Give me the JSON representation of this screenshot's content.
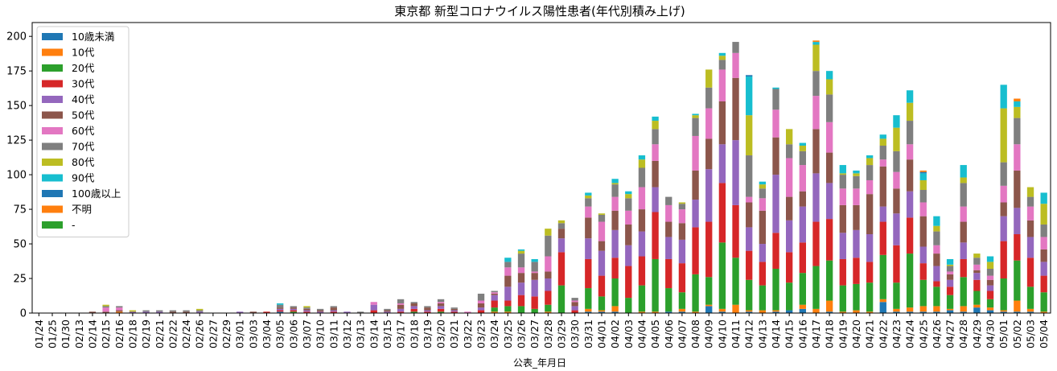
{
  "chart_data": {
    "type": "bar",
    "stacked": true,
    "title": "東京都 新型コロナウイルス陽性患者(年代別積み上げ)",
    "xlabel": "公表_年月日",
    "ylabel": "",
    "ylim": [
      0,
      210
    ],
    "yticks": [
      0,
      25,
      50,
      75,
      100,
      125,
      150,
      175,
      200
    ],
    "grid": false,
    "legend_position": "top-left",
    "categories": [
      "01/24",
      "01/25",
      "01/30",
      "02/13",
      "02/14",
      "02/15",
      "02/16",
      "02/18",
      "02/19",
      "02/21",
      "02/22",
      "02/24",
      "02/26",
      "02/27",
      "02/29",
      "03/01",
      "03/03",
      "03/04",
      "03/05",
      "03/06",
      "03/07",
      "03/10",
      "03/11",
      "03/12",
      "03/13",
      "03/14",
      "03/15",
      "03/17",
      "03/18",
      "03/19",
      "03/20",
      "03/21",
      "03/22",
      "03/23",
      "03/24",
      "03/25",
      "03/26",
      "03/27",
      "03/28",
      "03/29",
      "03/30",
      "03/31",
      "04/01",
      "04/02",
      "04/03",
      "04/04",
      "04/05",
      "04/06",
      "04/07",
      "04/08",
      "04/09",
      "04/10",
      "04/11",
      "04/12",
      "04/13",
      "04/14",
      "04/15",
      "04/16",
      "04/17",
      "04/18",
      "04/19",
      "04/20",
      "04/21",
      "04/22",
      "04/23",
      "04/24",
      "04/25",
      "04/26",
      "04/27",
      "04/28",
      "04/29",
      "04/30",
      "05/01",
      "05/02",
      "05/03",
      "05/04"
    ],
    "series": [
      {
        "name": "10歳未満",
        "color": "#1f77b4",
        "values": [
          0,
          0,
          0,
          0,
          0,
          0,
          0,
          0,
          0,
          0,
          0,
          0,
          0,
          0,
          0,
          0,
          0,
          0,
          1,
          0,
          0,
          0,
          0,
          0,
          0,
          0,
          0,
          0,
          0,
          0,
          0,
          0,
          0,
          0,
          0,
          0,
          0,
          0,
          0,
          0,
          0,
          1,
          1,
          1,
          0,
          0,
          0,
          1,
          1,
          0,
          5,
          1,
          0,
          1,
          0,
          1,
          2,
          3,
          0,
          1,
          0,
          0,
          0,
          8,
          1,
          1,
          1,
          1,
          2,
          1,
          4,
          2,
          1,
          1,
          1,
          0
        ]
      },
      {
        "name": "10代",
        "color": "#ff7f0e",
        "values": [
          0,
          0,
          0,
          0,
          0,
          0,
          1,
          0,
          0,
          0,
          0,
          0,
          0,
          0,
          0,
          0,
          0,
          0,
          0,
          0,
          0,
          0,
          0,
          0,
          0,
          0,
          0,
          0,
          0,
          0,
          0,
          0,
          0,
          0,
          1,
          1,
          0,
          0,
          1,
          0,
          0,
          2,
          1,
          4,
          0,
          1,
          1,
          0,
          2,
          1,
          1,
          2,
          6,
          1,
          2,
          1,
          0,
          3,
          3,
          8,
          1,
          2,
          1,
          2,
          2,
          3,
          4,
          4,
          1,
          4,
          2,
          2,
          1,
          8,
          2,
          1
        ]
      },
      {
        "name": "20代",
        "color": "#2ca02c",
        "values": [
          0,
          0,
          0,
          0,
          0,
          0,
          0,
          0,
          0,
          0,
          0,
          0,
          0,
          0,
          0,
          0,
          0,
          0,
          0,
          1,
          0,
          0,
          0,
          0,
          0,
          0,
          0,
          0,
          1,
          0,
          1,
          0,
          0,
          0,
          3,
          4,
          5,
          3,
          5,
          20,
          0,
          15,
          10,
          20,
          11,
          19,
          38,
          17,
          12,
          27,
          20,
          48,
          34,
          22,
          18,
          30,
          20,
          23,
          31,
          29,
          19,
          19,
          21,
          32,
          19,
          39,
          19,
          14,
          10,
          21,
          10,
          6,
          23,
          29,
          16,
          14
        ]
      },
      {
        "name": "30代",
        "color": "#d62728",
        "values": [
          0,
          0,
          0,
          0,
          0,
          0,
          0,
          0,
          0,
          0,
          0,
          0,
          0,
          0,
          0,
          0,
          0,
          1,
          1,
          1,
          1,
          0,
          1,
          0,
          0,
          2,
          0,
          1,
          2,
          1,
          2,
          1,
          0,
          2,
          5,
          4,
          8,
          9,
          10,
          24,
          2,
          21,
          15,
          15,
          23,
          21,
          34,
          21,
          21,
          34,
          40,
          43,
          38,
          21,
          17,
          26,
          22,
          22,
          32,
          30,
          19,
          19,
          15,
          24,
          27,
          26,
          12,
          4,
          6,
          13,
          8,
          6,
          27,
          19,
          21,
          12
        ]
      },
      {
        "name": "40代",
        "color": "#9467bd",
        "values": [
          0,
          0,
          0,
          0,
          0,
          0,
          0,
          1,
          1,
          1,
          0,
          0,
          1,
          0,
          0,
          1,
          0,
          0,
          1,
          1,
          1,
          1,
          1,
          1,
          0,
          4,
          1,
          2,
          2,
          1,
          2,
          1,
          0,
          2,
          4,
          10,
          9,
          12,
          9,
          10,
          3,
          15,
          18,
          20,
          15,
          18,
          18,
          16,
          17,
          20,
          38,
          28,
          47,
          17,
          13,
          42,
          23,
          26,
          35,
          26,
          19,
          20,
          20,
          11,
          23,
          19,
          12,
          11,
          5,
          12,
          5,
          4,
          18,
          19,
          15,
          10
        ]
      },
      {
        "name": "50代",
        "color": "#8c564b",
        "values": [
          0,
          0,
          0,
          0,
          1,
          1,
          1,
          0,
          0,
          0,
          1,
          1,
          0,
          0,
          0,
          0,
          1,
          0,
          1,
          1,
          1,
          1,
          2,
          0,
          0,
          0,
          1,
          3,
          2,
          2,
          2,
          1,
          0,
          3,
          1,
          8,
          7,
          5,
          5,
          7,
          3,
          15,
          7,
          14,
          15,
          16,
          19,
          11,
          12,
          21,
          22,
          31,
          45,
          18,
          24,
          27,
          17,
          11,
          32,
          22,
          20,
          18,
          29,
          29,
          18,
          23,
          22,
          9,
          4,
          15,
          2,
          4,
          10,
          27,
          12,
          9
        ]
      },
      {
        "name": "60代",
        "color": "#e377c2",
        "values": [
          0,
          0,
          0,
          0,
          0,
          3,
          2,
          0,
          0,
          0,
          0,
          0,
          0,
          0,
          0,
          0,
          0,
          0,
          0,
          0,
          0,
          0,
          0,
          0,
          0,
          2,
          0,
          1,
          0,
          0,
          1,
          0,
          1,
          2,
          1,
          6,
          4,
          1,
          11,
          0,
          1,
          8,
          14,
          10,
          10,
          16,
          12,
          12,
          10,
          25,
          22,
          23,
          18,
          4,
          9,
          20,
          28,
          19,
          24,
          22,
          12,
          12,
          10,
          5,
          12,
          11,
          10,
          6,
          2,
          11,
          4,
          3,
          12,
          19,
          10,
          9
        ]
      },
      {
        "name": "70代",
        "color": "#7f7f7f",
        "values": [
          0,
          0,
          0,
          0,
          0,
          1,
          1,
          0,
          1,
          1,
          1,
          1,
          1,
          0,
          0,
          0,
          0,
          0,
          2,
          1,
          1,
          1,
          1,
          0,
          1,
          0,
          1,
          3,
          1,
          1,
          2,
          1,
          0,
          5,
          1,
          4,
          10,
          7,
          15,
          4,
          2,
          6,
          5,
          9,
          9,
          14,
          11,
          6,
          4,
          13,
          15,
          7,
          8,
          30,
          7,
          15,
          10,
          10,
          18,
          20,
          10,
          9,
          11,
          10,
          15,
          17,
          9,
          10,
          4,
          17,
          5,
          5,
          17,
          19,
          7,
          9
        ]
      },
      {
        "name": "80代",
        "color": "#bcbd22",
        "values": [
          0,
          0,
          0,
          0,
          0,
          1,
          0,
          1,
          0,
          0,
          0,
          0,
          1,
          0,
          0,
          0,
          0,
          0,
          0,
          0,
          1,
          0,
          0,
          0,
          0,
          0,
          0,
          0,
          0,
          0,
          0,
          0,
          0,
          0,
          0,
          0,
          2,
          0,
          5,
          2,
          0,
          2,
          1,
          1,
          3,
          6,
          6,
          0,
          1,
          2,
          13,
          3,
          0,
          29,
          3,
          0,
          11,
          4,
          19,
          11,
          1,
          2,
          5,
          5,
          17,
          13,
          7,
          4,
          1,
          4,
          3,
          5,
          39,
          8,
          7,
          15
        ]
      },
      {
        "name": "90代",
        "color": "#17becf",
        "values": [
          0,
          0,
          0,
          0,
          0,
          0,
          0,
          0,
          0,
          0,
          0,
          0,
          0,
          0,
          0,
          0,
          0,
          0,
          1,
          0,
          0,
          0,
          0,
          0,
          0,
          0,
          0,
          0,
          0,
          0,
          0,
          0,
          0,
          0,
          0,
          3,
          1,
          2,
          0,
          0,
          0,
          2,
          0,
          3,
          2,
          3,
          3,
          0,
          0,
          1,
          0,
          2,
          0,
          28,
          2,
          1,
          0,
          2,
          2,
          6,
          6,
          2,
          2,
          3,
          9,
          9,
          5,
          7,
          4,
          9,
          0,
          4,
          17,
          4,
          0,
          8
        ]
      },
      {
        "name": "100歳以上",
        "color": "#1f77b4",
        "values": [
          0,
          0,
          0,
          0,
          0,
          0,
          0,
          0,
          0,
          0,
          0,
          0,
          0,
          0,
          0,
          0,
          0,
          0,
          0,
          0,
          0,
          0,
          0,
          0,
          0,
          0,
          0,
          0,
          0,
          0,
          0,
          0,
          0,
          0,
          0,
          0,
          0,
          0,
          0,
          0,
          0,
          0,
          0,
          0,
          0,
          0,
          0,
          0,
          0,
          0,
          0,
          0,
          0,
          1,
          0,
          0,
          0,
          0,
          0,
          0,
          0,
          0,
          0,
          0,
          0,
          0,
          1,
          0,
          0,
          0,
          0,
          0,
          0,
          0,
          0,
          0
        ]
      },
      {
        "name": "不明",
        "color": "#ff7f0e",
        "values": [
          0,
          0,
          0,
          0,
          0,
          0,
          0,
          0,
          0,
          0,
          0,
          0,
          0,
          0,
          0,
          0,
          0,
          0,
          0,
          0,
          0,
          0,
          0,
          0,
          0,
          0,
          0,
          0,
          0,
          0,
          0,
          0,
          0,
          0,
          0,
          0,
          0,
          0,
          0,
          0,
          0,
          0,
          0,
          0,
          0,
          0,
          0,
          0,
          0,
          0,
          0,
          0,
          0,
          0,
          0,
          0,
          0,
          0,
          1,
          0,
          0,
          0,
          0,
          0,
          0,
          0,
          1,
          0,
          0,
          0,
          0,
          0,
          0,
          2,
          0,
          0
        ]
      },
      {
        "name": "-",
        "color": "#2ca02c",
        "values": [
          0,
          0,
          0,
          0,
          0,
          0,
          0,
          0,
          0,
          0,
          0,
          0,
          0,
          0,
          0,
          0,
          0,
          0,
          0,
          0,
          0,
          0,
          0,
          0,
          0,
          0,
          0,
          0,
          0,
          0,
          0,
          0,
          0,
          0,
          0,
          0,
          0,
          0,
          0,
          0,
          0,
          0,
          0,
          0,
          0,
          0,
          0,
          0,
          0,
          0,
          0,
          0,
          0,
          0,
          0,
          0,
          0,
          0,
          0,
          0,
          0,
          0,
          0,
          0,
          0,
          0,
          0,
          0,
          0,
          0,
          0,
          0,
          0,
          0,
          0,
          0
        ]
      }
    ]
  }
}
